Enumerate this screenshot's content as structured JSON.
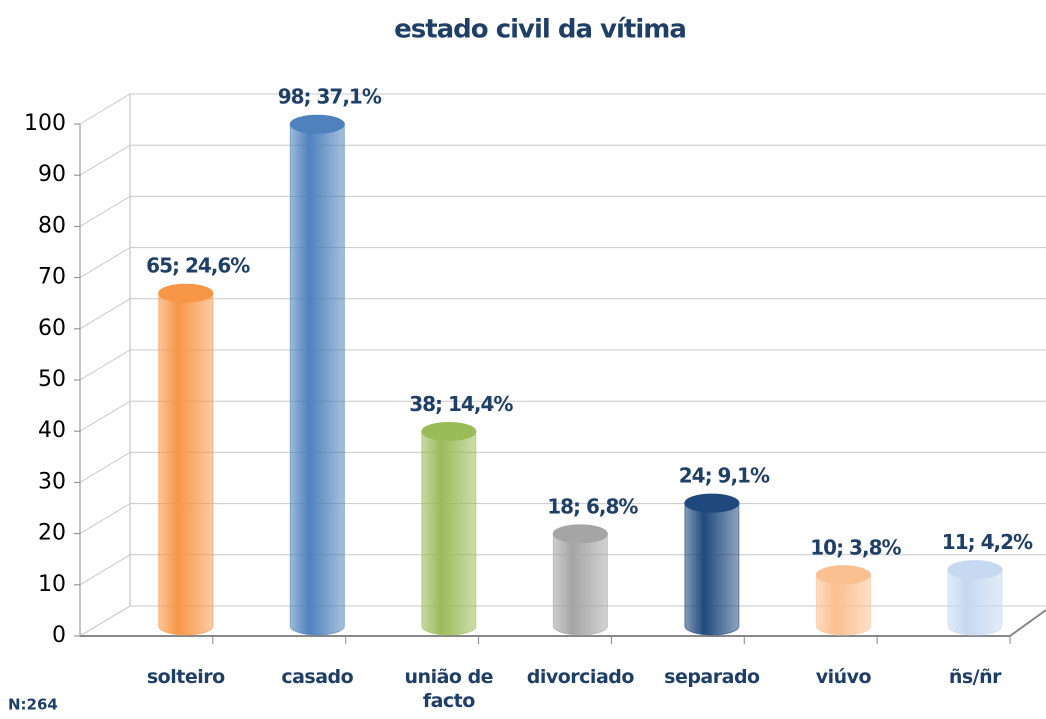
{
  "chart_data": {
    "type": "cylinder-bar",
    "title": "estado civil da vítima",
    "categories": [
      "solteiro",
      "casado",
      "união de facto",
      "divorciado",
      "separado",
      "viúvo",
      "ñs/ñr"
    ],
    "values": [
      65,
      98,
      38,
      18,
      24,
      10,
      11
    ],
    "value_labels": [
      "65; 24,6%",
      "98; 37,1%",
      "38; 14,4%",
      "18; 6,8%",
      "24; 9,1%",
      "10; 3,8%",
      "11; 4,2%"
    ],
    "colors": [
      "#f79646",
      "#4f81bd",
      "#9bbb59",
      "#a5a5a5",
      "#1f497d",
      "#fac090",
      "#c6d9f1"
    ],
    "ylim": [
      0,
      100
    ],
    "yticks": [
      0,
      10,
      20,
      30,
      40,
      50,
      60,
      70,
      80,
      90,
      100
    ],
    "grid": true,
    "footnote": "N:264"
  }
}
